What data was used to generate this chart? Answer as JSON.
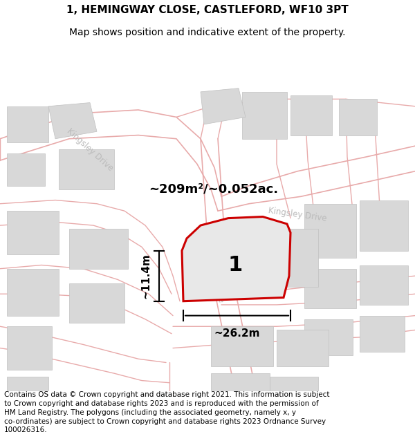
{
  "title": "1, HEMINGWAY CLOSE, CASTLEFORD, WF10 3PT",
  "subtitle": "Map shows position and indicative extent of the property.",
  "footer": "Contains OS data © Crown copyright and database right 2021. This information is subject\nto Crown copyright and database rights 2023 and is reproduced with the permission of\nHM Land Registry. The polygons (including the associated geometry, namely x, y\nco-ordinates) are subject to Crown copyright and database rights 2023 Ordnance Survey\n100026316.",
  "map_bg": "#f5f5f5",
  "road_color": "#e8aaaa",
  "building_fill": "#d8d8d8",
  "building_edge": "#c0c0c0",
  "plot_outline": "#cc0000",
  "plot_label": "1",
  "area_label": "~209m²/~0.052ac.",
  "width_label": "~26.2m",
  "height_label": "~11.4m",
  "label_color": "#bbbbbb",
  "title_fontsize": 11,
  "subtitle_fontsize": 10,
  "footer_fontsize": 7.5
}
